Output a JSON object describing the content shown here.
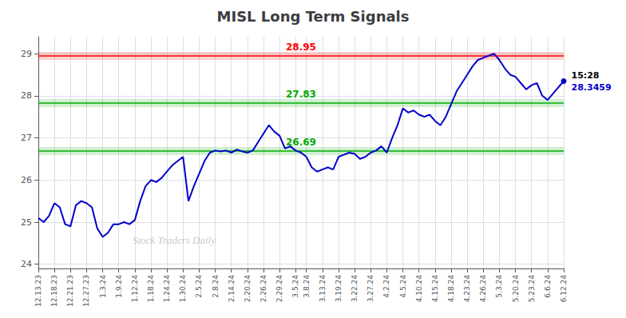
{
  "chart_data": {
    "type": "line",
    "title": "MISL Long Term Signals",
    "watermark": "Stock Traders Daily",
    "color": "#0000cc",
    "grid": true,
    "ylim": [
      23.9,
      29.4
    ],
    "yticks": [
      24,
      25,
      26,
      27,
      28,
      29
    ],
    "categories": [
      "12.13.23",
      null,
      null,
      "12.18.23",
      null,
      null,
      "12.21.23",
      null,
      null,
      "12.27.23",
      null,
      null,
      "1.3.24",
      null,
      null,
      "1.9.24",
      null,
      null,
      "1.12.24",
      null,
      null,
      "1.18.24",
      null,
      null,
      "1.24.24",
      null,
      null,
      "1.30.24",
      null,
      null,
      "2.5.24",
      null,
      null,
      "2.8.24",
      null,
      null,
      "2.14.24",
      null,
      null,
      "2.20.24",
      null,
      null,
      "2.26.24",
      null,
      null,
      "2.29.24",
      null,
      null,
      "3.5.24",
      null,
      "3.8.24",
      null,
      null,
      "3.13.24",
      null,
      null,
      "3.19.24",
      null,
      null,
      "3.22.24",
      null,
      null,
      "3.27.24",
      null,
      null,
      "4.2.24",
      null,
      null,
      "4.5.24",
      null,
      null,
      "4.10.24",
      null,
      null,
      "4.15.24",
      null,
      null,
      "4.18.24",
      null,
      null,
      "4.23.24",
      null,
      null,
      "4.26.24",
      null,
      null,
      "5.3.24",
      null,
      null,
      "5.20.24",
      null,
      null,
      "5.23.24",
      null,
      null,
      "6.6.24",
      null,
      null,
      "6.12.24"
    ],
    "values": [
      25.1,
      25.0,
      25.15,
      25.45,
      25.35,
      24.95,
      24.9,
      25.4,
      25.5,
      25.45,
      25.35,
      24.85,
      24.65,
      24.75,
      24.95,
      24.95,
      25.0,
      24.95,
      25.05,
      25.5,
      25.85,
      26.0,
      25.95,
      26.05,
      26.2,
      26.35,
      26.45,
      26.55,
      25.5,
      25.85,
      26.15,
      26.45,
      26.65,
      26.7,
      26.68,
      26.7,
      26.65,
      26.72,
      26.68,
      26.65,
      26.7,
      26.9,
      27.1,
      27.3,
      27.15,
      27.05,
      26.75,
      26.8,
      26.7,
      26.65,
      26.55,
      26.3,
      26.2,
      26.25,
      26.3,
      26.25,
      26.55,
      26.6,
      26.65,
      26.62,
      26.5,
      26.55,
      26.65,
      26.7,
      26.8,
      26.65,
      27.0,
      27.3,
      27.7,
      27.6,
      27.65,
      27.55,
      27.5,
      27.55,
      27.4,
      27.3,
      27.5,
      27.8,
      28.1,
      28.3,
      28.5,
      28.7,
      28.85,
      28.9,
      28.95,
      29.0,
      28.85,
      28.65,
      28.5,
      28.45,
      28.3,
      28.15,
      28.25,
      28.3,
      28.0,
      27.9,
      28.05,
      28.2,
      28.3459
    ],
    "reference_lines": [
      {
        "value": 28.95,
        "label": "28.95",
        "color": "#ff0000"
      },
      {
        "value": 27.83,
        "label": "27.83",
        "color": "#00aa00"
      },
      {
        "value": 26.69,
        "label": "26.69",
        "color": "#00aa00"
      }
    ],
    "last_point": {
      "time": "15:28",
      "value_label": "28.3459"
    }
  }
}
